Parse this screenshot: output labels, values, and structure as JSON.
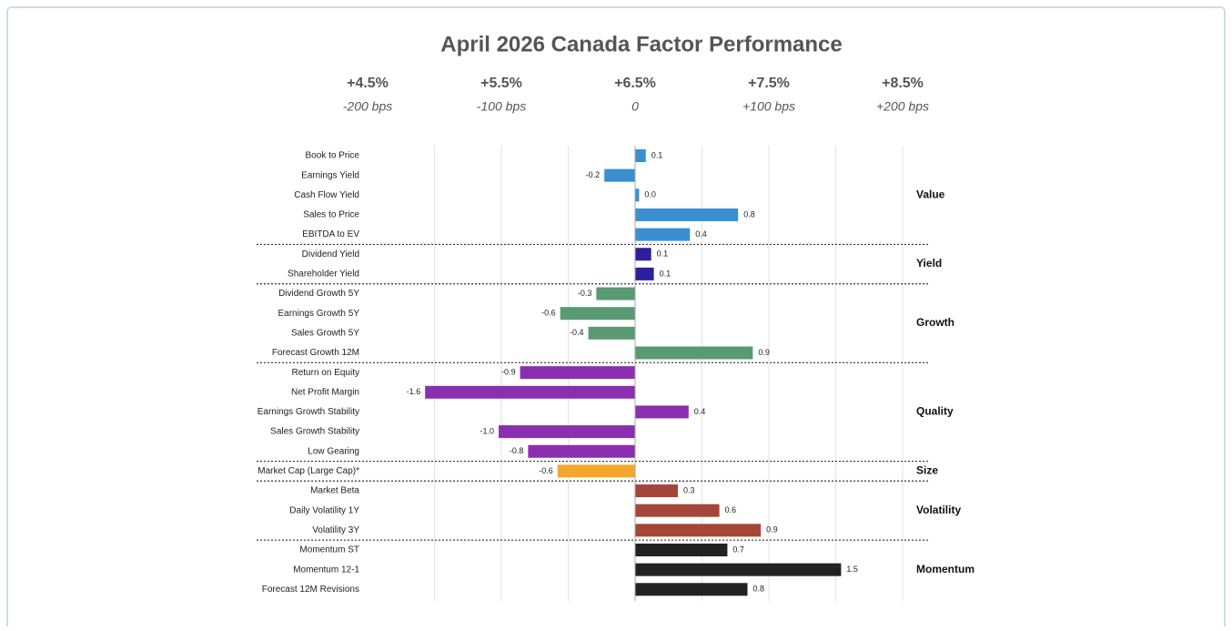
{
  "chart_data": {
    "type": "bar",
    "title": "April 2026 Canada Factor Performance",
    "xlim": [
      -2,
      2
    ],
    "xticks": [
      {
        "value": -2,
        "label": "+4.5%",
        "sublabel": "-200 bps"
      },
      {
        "value": -1,
        "label": "+5.5%",
        "sublabel": "-100 bps"
      },
      {
        "value": 0,
        "label": "+6.5%",
        "sublabel": "0"
      },
      {
        "value": 1,
        "label": "+7.5%",
        "sublabel": "+100 bps"
      },
      {
        "value": 2,
        "label": "+8.5%",
        "sublabel": "+200 bps"
      }
    ],
    "gridlines": [
      -1.5,
      -1,
      -0.5,
      0.5,
      1,
      1.5,
      2
    ],
    "grid": true,
    "groups": [
      {
        "name": "Value",
        "color": "#3a8fd0",
        "categories": [
          "Book to Price",
          "Earnings Yield",
          "Cash Flow Yield",
          "Sales to Price",
          "EBITDA to EV"
        ],
        "values": [
          0.08,
          -0.23,
          0.03,
          0.77,
          0.41
        ],
        "value_labels": [
          "0.1",
          "-0.2",
          "0.0",
          "0.8",
          "0.4"
        ]
      },
      {
        "name": "Yield",
        "color": "#2e1f9c",
        "categories": [
          "Dividend Yield",
          "Shareholder Yield"
        ],
        "values": [
          0.12,
          0.14
        ],
        "value_labels": [
          "0.1",
          "0.1"
        ]
      },
      {
        "name": "Growth",
        "color": "#5a9a72",
        "categories": [
          "Dividend Growth 5Y",
          "Earnings Growth 5Y",
          "Sales Growth 5Y",
          "Forecast Growth 12M"
        ],
        "values": [
          -0.29,
          -0.56,
          -0.35,
          0.88
        ],
        "value_labels": [
          "-0.3",
          "-0.6",
          "-0.4",
          "0.9"
        ]
      },
      {
        "name": "Quality",
        "color": "#8a2fb0",
        "categories": [
          "Return on Equity",
          "Net Profit Margin",
          "Earnings Growth Stability",
          "Sales Growth Stability",
          "Low Gearing"
        ],
        "values": [
          -0.86,
          -1.57,
          0.4,
          -1.02,
          -0.8
        ],
        "value_labels": [
          "-0.9",
          "-1.6",
          "0.4",
          "-1.0",
          "-0.8"
        ]
      },
      {
        "name": "Size",
        "color": "#f3a72d",
        "categories": [
          "Market Cap (Large Cap)*"
        ],
        "values": [
          -0.58
        ],
        "value_labels": [
          "-0.6"
        ]
      },
      {
        "name": "Volatility",
        "color": "#a5463a",
        "categories": [
          "Market Beta",
          "Daily Volatility 1Y",
          "Volatility 3Y"
        ],
        "values": [
          0.32,
          0.63,
          0.94
        ],
        "value_labels": [
          "0.3",
          "0.6",
          "0.9"
        ]
      },
      {
        "name": "Momentum",
        "color": "#222222",
        "categories": [
          "Momentum ST",
          "Momentum 12-1",
          "Forecast 12M Revisions"
        ],
        "values": [
          0.69,
          1.54,
          0.84
        ],
        "value_labels": [
          "0.7",
          "1.5",
          "0.8"
        ]
      }
    ]
  }
}
